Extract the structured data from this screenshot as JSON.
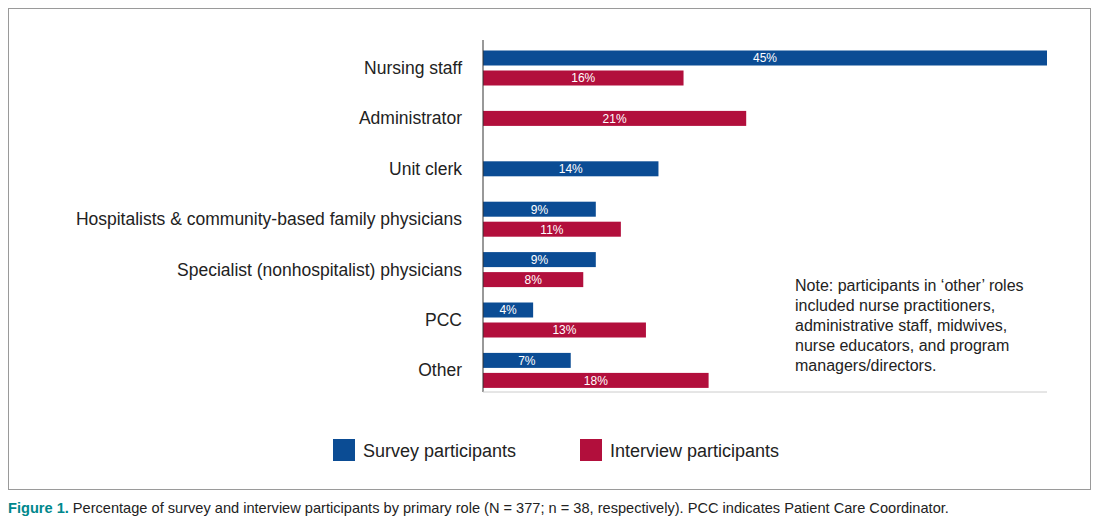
{
  "chart_data": {
    "type": "bar",
    "orientation": "horizontal",
    "categories": [
      "Nursing staff",
      "Administrator",
      "Unit clerk",
      "Hospitalists & community-based family physicians",
      "Specialist (nonhospitalist) physicians",
      "PCC",
      "Other"
    ],
    "series": [
      {
        "name": "Survey participants",
        "color": "#0b4c94",
        "values": [
          45,
          null,
          14,
          9,
          9,
          4,
          7
        ],
        "value_labels": [
          "45%",
          null,
          "14%",
          "9%",
          "9%",
          "4%",
          "7%"
        ]
      },
      {
        "name": "Interview participants",
        "color": "#b20f3c",
        "values": [
          16,
          21,
          null,
          11,
          8,
          13,
          18
        ],
        "value_labels": [
          "16%",
          "21%",
          null,
          "11%",
          "8%",
          "13%",
          "18%"
        ]
      }
    ],
    "xlim": [
      0,
      45
    ],
    "data_labels": true,
    "tick_labels": "y",
    "legend": "bottom",
    "annotations": [
      "Note: participants in ‘other’ roles included nurse practitioners, administrative staff, midwives, nurse educators, and program managers/directors."
    ],
    "caption": {
      "label": "Figure 1.",
      "text": "Percentage of survey and interview participants by primary role (N = 377; n = 38, respectively). PCC indicates Patient Care Coordinator."
    }
  }
}
